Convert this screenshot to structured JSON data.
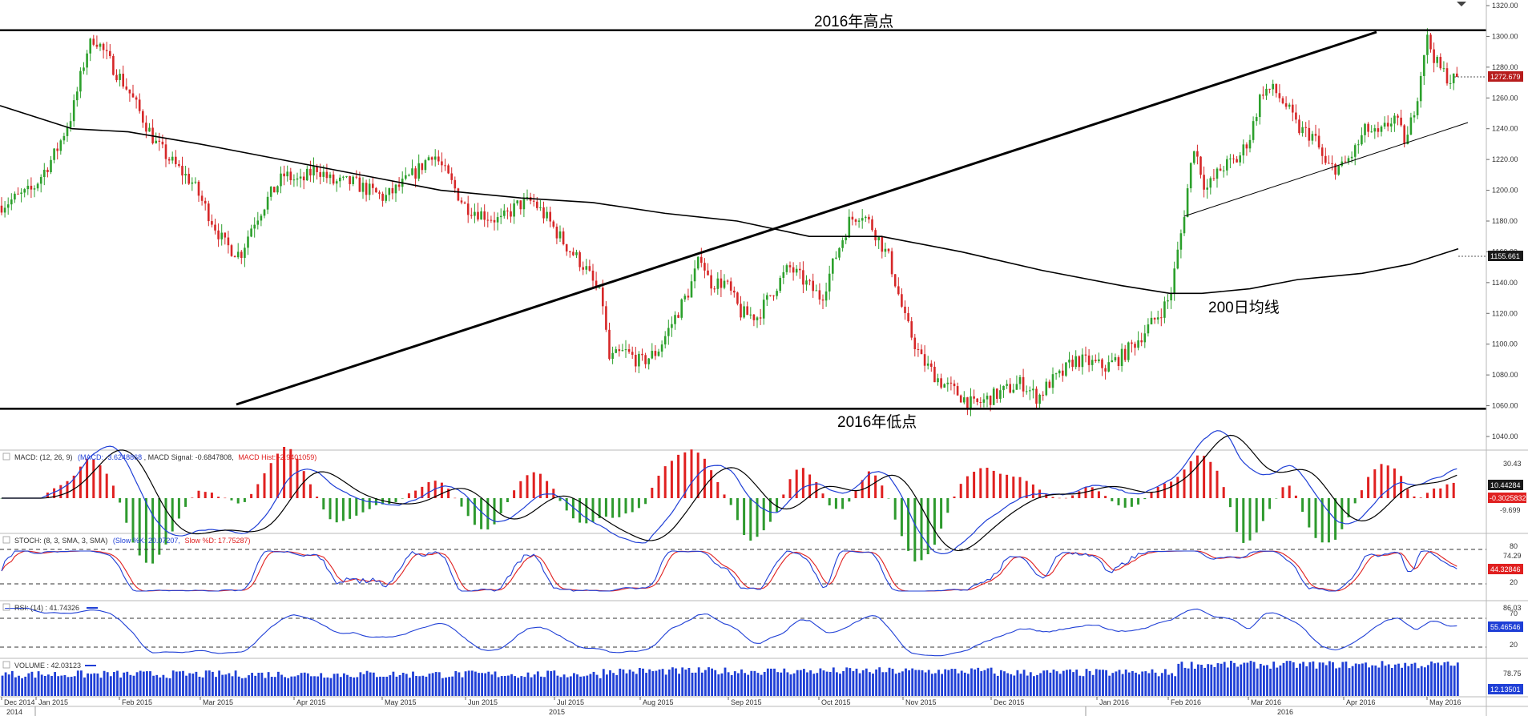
{
  "chart_data": {
    "type": "candlestick",
    "colors": {
      "up": "#2ca02c",
      "down": "#d62728",
      "trendline": "#000000",
      "macd_line": "#1f3fd6",
      "signal_line": "#000000",
      "hist_pos": "#e02020",
      "hist_neg": "#2e9a2e",
      "stoch_k": "#1f3fd6",
      "stoch_d": "#e02020",
      "rsi": "#1f3fd6",
      "volume": "#1f3fd6",
      "last_price_tag": "#b71c1c"
    },
    "annotations": {
      "high_2016": "2016年高点",
      "low_2016": "2016年低点",
      "ma200": "200日均线"
    },
    "price_axis": {
      "ticks": [
        "1320.00",
        "1300.00",
        "1280.00",
        "1260.00",
        "1240.00",
        "1220.00",
        "1200.00",
        "1180.00",
        "1160.00",
        "1140.00",
        "1120.00",
        "1100.00",
        "1080.00",
        "1060.00",
        "1040.00"
      ],
      "last_price": "1272.679",
      "ma200_value": "1155.661"
    },
    "x_axis": {
      "months": [
        "Dec 2014",
        "Jan 2015",
        "Feb 2015",
        "Mar 2015",
        "Apr 2015",
        "May 2015",
        "Jun 2015",
        "Jul 2015",
        "Aug 2015",
        "Sep 2015",
        "Oct 2015",
        "Nov 2015",
        "Dec 2015",
        "Jan 2016",
        "Feb 2016",
        "Mar 2016",
        "Apr 2016",
        "May 2016"
      ],
      "years": [
        "2014",
        "2015",
        "2016"
      ]
    },
    "levels": {
      "high_2016": 1304,
      "low_2016": 1058
    },
    "macd": {
      "header": "MACD: (12, 26, 9)",
      "macd_label": "(MACD: -3.6248868",
      "signal_label": ", MACD Signal: -0.6847808,",
      "hist_label": "MACD Hist: -2.9401059)",
      "ticks": [
        "30.43",
        "-9.699"
      ],
      "tag1": "10.44284",
      "tag2": "-0.3025832"
    },
    "stoch": {
      "header": "STOCH: (8, 3, SMA, 3, SMA)",
      "k_label": "(Slow %K: 20.07207,",
      "d_label": "Slow %D: 17.75287)",
      "ticks": [
        "80",
        "74.29",
        "20"
      ],
      "tag": "44.32846"
    },
    "rsi": {
      "header": "RSI: (14) : 41.74326",
      "ticks": [
        "86.03",
        "70",
        "20"
      ],
      "tag": "55.46546"
    },
    "volume": {
      "header": "VOLUME : 42.03123",
      "ticks": [
        "78.75"
      ],
      "tag": "12.13501"
    }
  }
}
